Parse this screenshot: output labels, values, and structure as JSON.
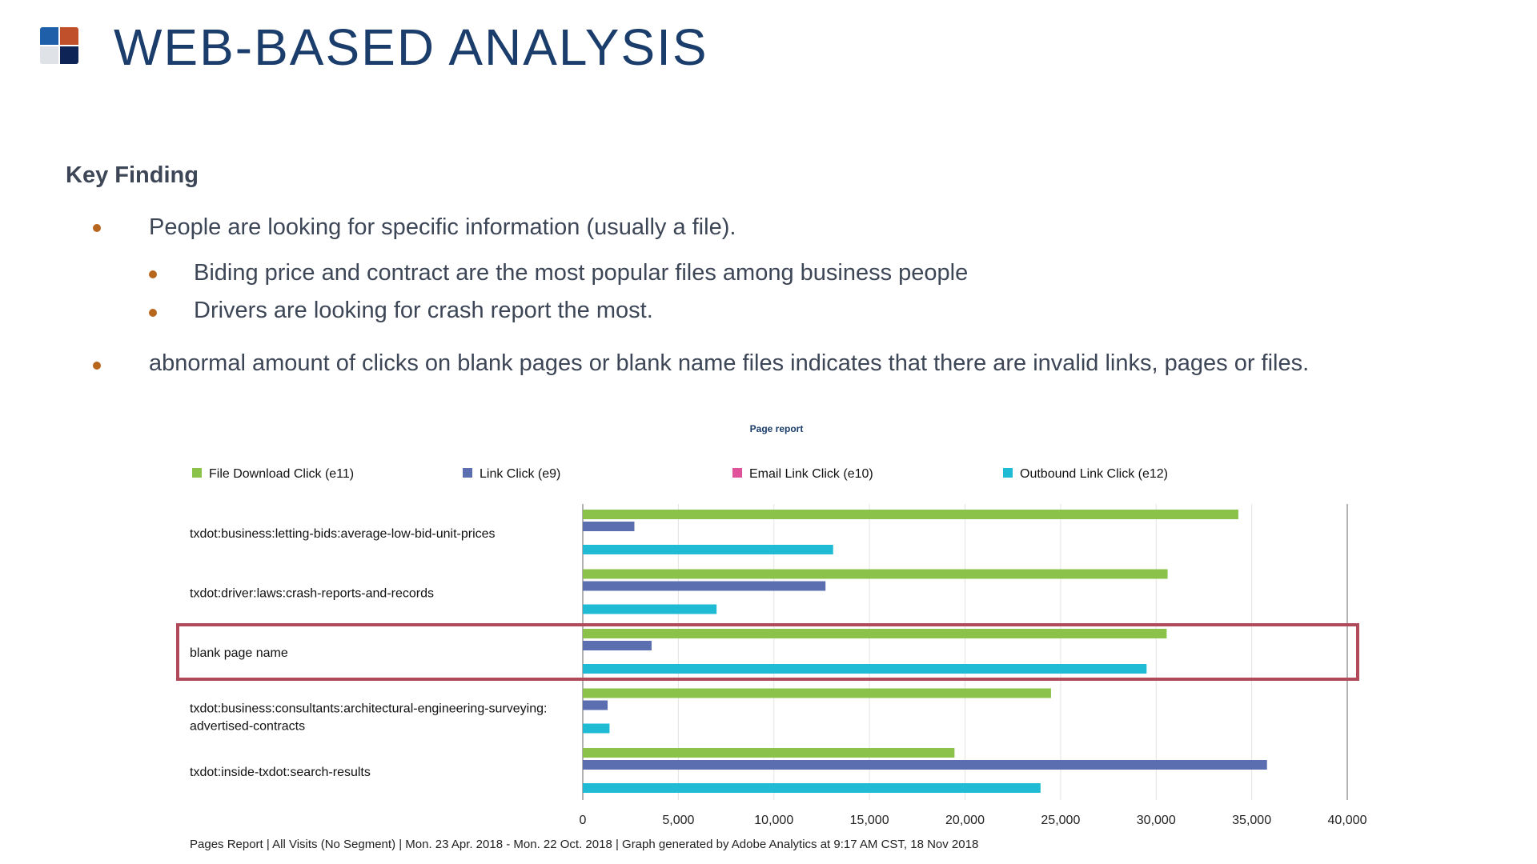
{
  "slide": {
    "title": "WEB-BASED ANALYSIS",
    "key_finding_heading": "Key Finding",
    "bullets": [
      {
        "level": 1,
        "text": "People are looking for specific information (usually a file)."
      },
      {
        "level": 2,
        "text": "Biding price and contract are the most popular files among business people"
      },
      {
        "level": 2,
        "text": "Drivers are looking for crash report the most."
      },
      {
        "level": 1,
        "text": "abnormal amount of clicks on blank pages or blank name files indicates that there are invalid links, pages or files."
      }
    ],
    "colors": {
      "title": "#1b3d6b",
      "text": "#3d4656",
      "bullet": "#b8651d",
      "highlight_box": "#b04a5a"
    }
  },
  "chart_data": {
    "type": "bar",
    "orientation": "horizontal",
    "title": "Page report",
    "categories": [
      "txdot:business:letting-bids:average-low-bid-unit-prices",
      "txdot:driver:laws:crash-reports-and-records",
      "blank page name",
      "txdot:business:consultants:architectural-engineering-surveying:advertised-contracts",
      "txdot:inside-txdot:search-results"
    ],
    "series": [
      {
        "name": "File Download Click (e11)",
        "color": "#8bc34a",
        "values": [
          34300,
          30600,
          30550,
          24500,
          19450
        ]
      },
      {
        "name": "Link Click (e9)",
        "color": "#5b6fb0",
        "values": [
          2700,
          12700,
          3600,
          1300,
          35800
        ]
      },
      {
        "name": "Email Link Click (e10)",
        "color": "#e0529c",
        "values": [
          0,
          0,
          0,
          0,
          0
        ]
      },
      {
        "name": "Outbound Link Click (e12)",
        "color": "#1fbbd4",
        "values": [
          13100,
          7000,
          29500,
          1400,
          23950
        ]
      }
    ],
    "xlim": [
      0,
      40000
    ],
    "xticks": [
      "0",
      "5,000",
      "10,000",
      "15,000",
      "20,000",
      "25,000",
      "30,000",
      "35,000",
      "40,000"
    ],
    "grid": true,
    "legend_position": "top",
    "highlighted_category": "blank page name",
    "footer": "Pages Report | All Visits (No Segment) | Mon. 23 Apr. 2018 - Mon. 22 Oct. 2018 | Graph generated by Adobe Analytics at  9:17 AM CST, 18 Nov 2018"
  }
}
